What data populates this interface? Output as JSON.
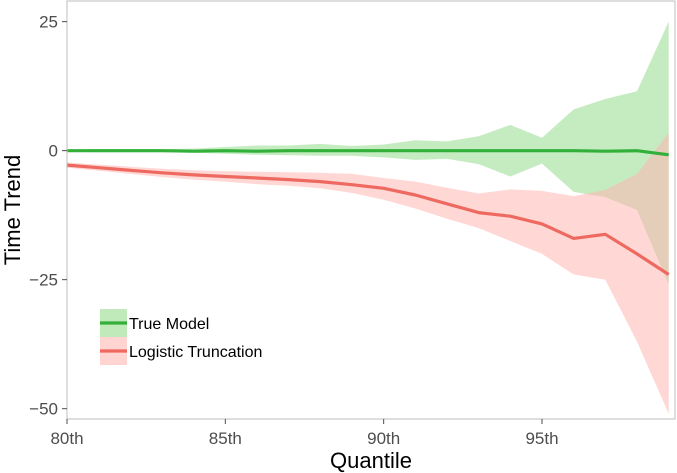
{
  "chart_data": {
    "type": "line",
    "title": "",
    "xlabel": "Quantile",
    "ylabel": "Time Trend",
    "xlim": [
      80,
      99.2
    ],
    "ylim": [
      -52,
      29
    ],
    "x_ticks": [
      {
        "value": 80,
        "label": "80th"
      },
      {
        "value": 85,
        "label": "85th"
      },
      {
        "value": 90,
        "label": "90th"
      },
      {
        "value": 95,
        "label": "95th"
      }
    ],
    "y_ticks": [
      {
        "value": 25,
        "label": "25"
      },
      {
        "value": 0,
        "label": "0"
      },
      {
        "value": -25,
        "label": "−25"
      },
      {
        "value": -50,
        "label": "−50"
      }
    ],
    "legend_position": "bottom-left",
    "grid": false,
    "series": [
      {
        "name": "True Model",
        "color": "#33b03a",
        "ribbon_color": "#96dc8c",
        "x": [
          80,
          81,
          82,
          83,
          84,
          85,
          86,
          87,
          88,
          89,
          90,
          91,
          92,
          93,
          94,
          95,
          96,
          97,
          98,
          99
        ],
        "values": [
          0,
          0,
          0,
          0,
          -0.1,
          0,
          -0.1,
          0,
          0,
          0,
          0,
          0,
          0,
          0,
          0,
          0,
          0,
          -0.1,
          0,
          -0.8
        ],
        "lower": [
          -0.2,
          -0.3,
          -0.3,
          -0.3,
          -0.4,
          -0.6,
          -0.8,
          -0.9,
          -1.0,
          -1.0,
          -1.3,
          -1.8,
          -1.6,
          -2.6,
          -5.0,
          -2.5,
          -8.0,
          -9.0,
          -11.5,
          -26.0
        ],
        "upper": [
          0.2,
          0.3,
          0.3,
          0.3,
          0.4,
          0.7,
          1.0,
          1.0,
          1.3,
          0.9,
          1.2,
          2.0,
          1.8,
          2.8,
          5.0,
          2.5,
          8.0,
          10.0,
          11.5,
          25.0
        ]
      },
      {
        "name": "Logistic Truncation",
        "color": "#ee6a60",
        "ribbon_color": "#ffb7b2",
        "x": [
          80,
          81,
          82,
          83,
          84,
          85,
          86,
          87,
          88,
          89,
          90,
          91,
          92,
          93,
          94,
          95,
          96,
          97,
          98,
          99
        ],
        "values": [
          -2.8,
          -3.3,
          -3.8,
          -4.3,
          -4.7,
          -5.0,
          -5.3,
          -5.6,
          -6.0,
          -6.6,
          -7.3,
          -8.6,
          -10.3,
          -12.0,
          -12.7,
          -14.2,
          -17.0,
          -16.2,
          -20.0,
          -24.0
        ],
        "lower": [
          -3.3,
          -3.9,
          -4.5,
          -5.1,
          -5.6,
          -6.0,
          -6.5,
          -6.8,
          -7.3,
          -8.2,
          -9.5,
          -11.2,
          -13.2,
          -15.0,
          -17.5,
          -20.0,
          -24.0,
          -25.0,
          -37.0,
          -51.0
        ],
        "upper": [
          -2.3,
          -2.7,
          -3.1,
          -3.5,
          -3.8,
          -4.0,
          -4.1,
          -4.2,
          -4.3,
          -4.5,
          -5.3,
          -6.0,
          -7.2,
          -8.3,
          -7.5,
          -7.8,
          -8.8,
          -7.6,
          -4.5,
          3.5
        ]
      }
    ]
  }
}
